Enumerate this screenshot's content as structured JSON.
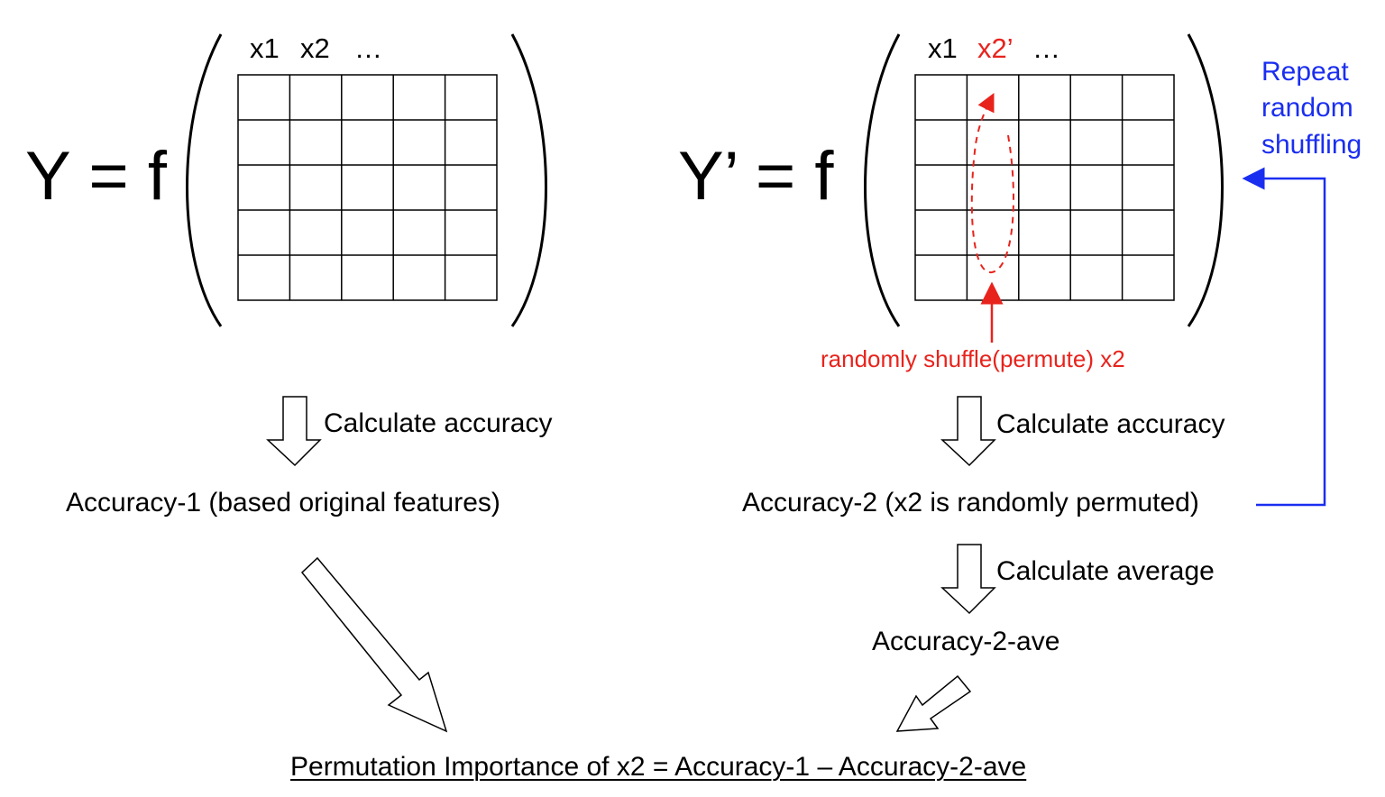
{
  "left": {
    "equation": "Y = f",
    "col1": "x1",
    "col2": "x2",
    "ellipsis": "…",
    "step_label": "Calculate accuracy",
    "result": "Accuracy-1 (based original features)"
  },
  "right": {
    "equation": "Y’ = f",
    "col1": "x1",
    "col2": "x2’",
    "ellipsis": "…",
    "shuffle_note": "randomly shuffle(permute) x2",
    "step_label": "Calculate accuracy",
    "result": "Accuracy-2 (x2 is randomly permuted)",
    "avg_label": "Calculate average",
    "avg_result": "Accuracy-2-ave"
  },
  "repeat_note": {
    "line1": "Repeat",
    "line2": "random",
    "line3": "shuffling"
  },
  "formula": "Permutation Importance of x2 = Accuracy-1 – Accuracy-2-ave",
  "grid": {
    "rows": 5,
    "cols": 5
  },
  "colors": {
    "text": "#000000",
    "highlight_red": "#e8231c",
    "loop_blue": "#1a2ef0"
  }
}
